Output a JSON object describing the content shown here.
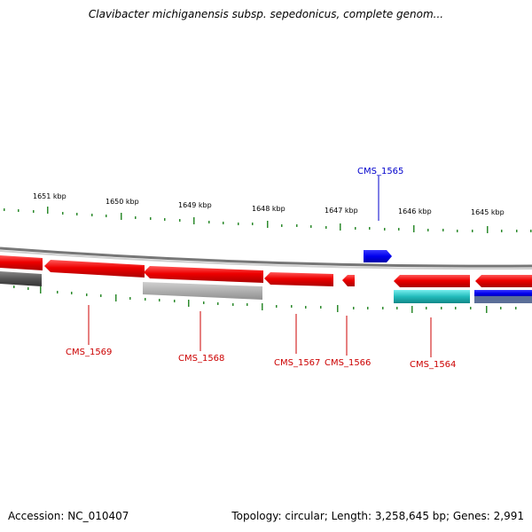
{
  "title": "Clavibacter michiganensis subsp. sepedonicus, complete genom...",
  "footer": {
    "accession": "Accession: NC_010407",
    "summary": "Topology: circular; Length: 3,258,645 bp; Genes: 2,991"
  },
  "scale": {
    "color": "#2e8b2e",
    "labels": [
      "1651 kbp",
      "1650 kbp",
      "1649 kbp",
      "1648 kbp",
      "1647 kbp",
      "1646 kbp",
      "1645 kbp"
    ]
  },
  "genes": {
    "CMS_1565": {
      "label": "CMS_1565",
      "color": "#0000cc"
    },
    "CMS_1569": {
      "label": "CMS_1569",
      "color": "#cc0000"
    },
    "CMS_1568": {
      "label": "CMS_1568",
      "color": "#cc0000"
    },
    "CMS_1567": {
      "label": "CMS_1567",
      "color": "#cc0000"
    },
    "CMS_1566": {
      "label": "CMS_1566",
      "color": "#cc0000"
    },
    "CMS_1564": {
      "label": "CMS_1564",
      "color": "#cc0000"
    }
  },
  "colors": {
    "gene_red": "#ee1111",
    "gene_blue": "#0000ee",
    "gene_gray": "#999999",
    "gene_darkgray": "#555555",
    "gene_cyan": "#22bbbb",
    "backbone": "#888888"
  }
}
